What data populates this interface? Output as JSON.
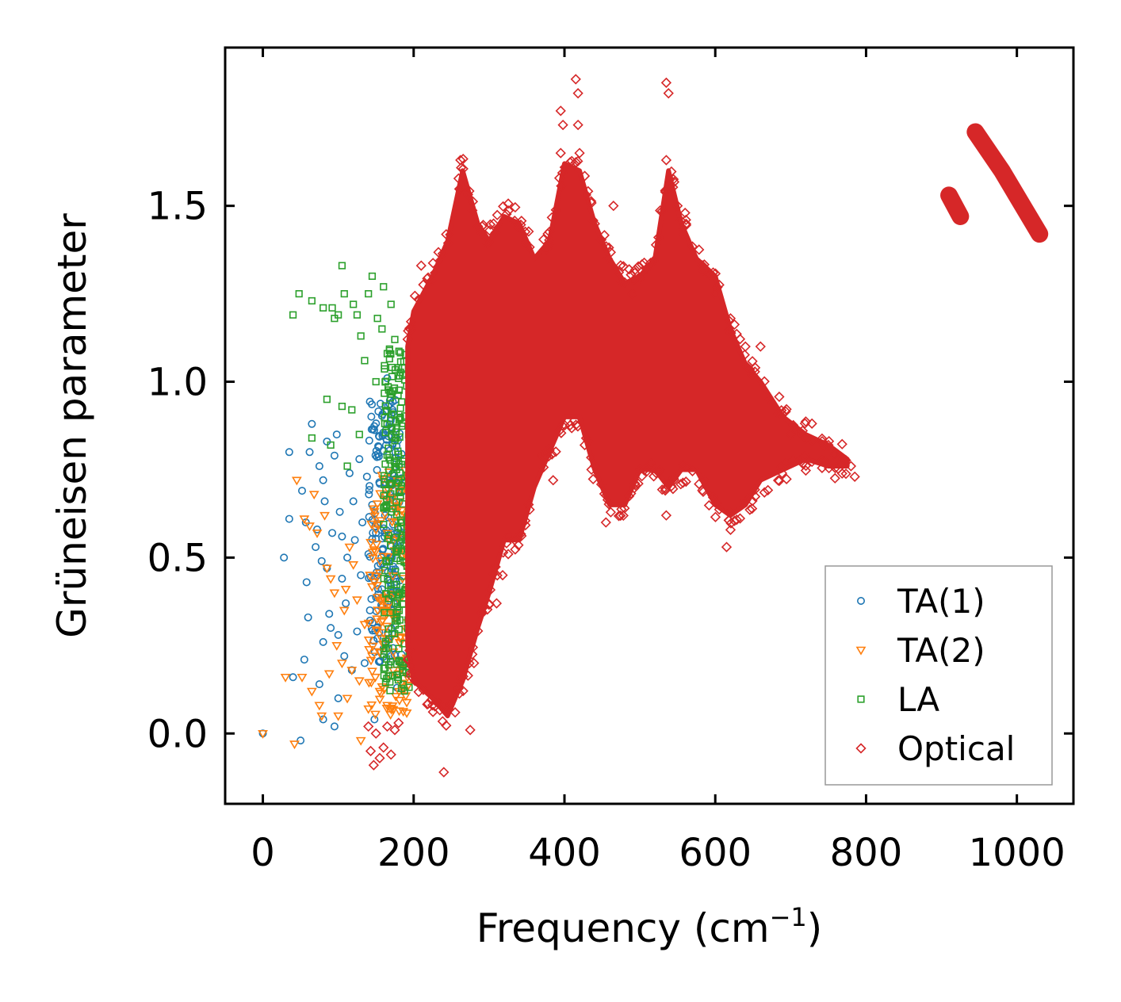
{
  "chart_data": {
    "type": "scatter",
    "title": "",
    "xlabel": "Frequency (cm",
    "xlabel_superscript": "−1",
    "xlabel_suffix": ")",
    "ylabel": "Grüneisen parameter",
    "xlim": [
      -50,
      1075
    ],
    "ylim": [
      -0.2,
      1.95
    ],
    "x_ticks": [
      0,
      200,
      400,
      600,
      800,
      1000
    ],
    "x_tick_labels": [
      "0",
      "200",
      "400",
      "600",
      "800",
      "1000"
    ],
    "y_ticks": [
      0.0,
      0.5,
      1.0,
      1.5
    ],
    "y_tick_labels": [
      "0.0",
      "0.5",
      "1.0",
      "1.5"
    ],
    "grid": false,
    "legend_position": "bottom-right",
    "series": [
      {
        "name": "TA(1)",
        "marker": "circle",
        "color": "#1f77b4",
        "points": [
          [
            0,
            0.0
          ],
          [
            28,
            0.5
          ],
          [
            35,
            0.8
          ],
          [
            35,
            0.61
          ],
          [
            40,
            0.16
          ],
          [
            50,
            -0.02
          ],
          [
            52,
            0.69
          ],
          [
            55,
            0.21
          ],
          [
            57,
            0.6
          ],
          [
            58,
            0.43
          ],
          [
            60,
            0.33
          ],
          [
            62,
            0.8
          ],
          [
            65,
            0.88
          ],
          [
            70,
            0.53
          ],
          [
            72,
            0.58
          ],
          [
            75,
            0.14
          ],
          [
            75,
            0.76
          ],
          [
            78,
            0.49
          ],
          [
            80,
            0.72
          ],
          [
            80,
            0.26
          ],
          [
            80,
            0.04
          ],
          [
            82,
            0.66
          ],
          [
            85,
            0.47
          ],
          [
            85,
            0.83
          ],
          [
            88,
            0.34
          ],
          [
            90,
            0.3
          ],
          [
            92,
            0.57
          ],
          [
            95,
            0.79
          ],
          [
            95,
            0.02
          ],
          [
            98,
            0.85
          ],
          [
            100,
            0.28
          ],
          [
            100,
            0.1
          ],
          [
            102,
            0.63
          ],
          [
            105,
            0.56
          ],
          [
            105,
            0.44
          ],
          [
            108,
            0.22
          ],
          [
            110,
            0.37
          ],
          [
            112,
            0.5
          ],
          [
            115,
            0.74
          ],
          [
            118,
            0.18
          ],
          [
            120,
            0.66
          ],
          [
            122,
            0.55
          ],
          [
            125,
            0.29
          ],
          [
            128,
            0.78
          ],
          [
            130,
            0.45
          ],
          [
            132,
            0.6
          ],
          [
            135,
            0.2
          ],
          [
            138,
            0.73
          ],
          [
            140,
            0.51
          ],
          [
            142,
            0.35
          ],
          [
            145,
            0.65
          ],
          [
            148,
            0.04
          ],
          [
            150,
            0.57
          ],
          [
            152,
            0.27
          ],
          [
            155,
            0.71
          ],
          [
            158,
            0.41
          ],
          [
            160,
            0.85
          ],
          [
            162,
            0.62
          ],
          [
            165,
            1.01
          ],
          [
            168,
            0.5
          ],
          [
            170,
            0.22
          ],
          [
            172,
            0.92
          ],
          [
            175,
            0.69
          ],
          [
            178,
            0.13
          ],
          [
            180,
            0.58
          ]
        ],
        "cloud": {
          "x": [
            140,
            185
          ],
          "y": [
            0.2,
            0.95
          ],
          "count": 180
        }
      },
      {
        "name": "TA(2)",
        "marker": "triangle-down",
        "color": "#ff7f0e",
        "points": [
          [
            0,
            0.0
          ],
          [
            30,
            0.16
          ],
          [
            42,
            -0.03
          ],
          [
            45,
            0.72
          ],
          [
            52,
            0.16
          ],
          [
            55,
            0.61
          ],
          [
            62,
            0.59
          ],
          [
            65,
            0.12
          ],
          [
            68,
            0.68
          ],
          [
            72,
            0.57
          ],
          [
            75,
            0.08
          ],
          [
            78,
            0.05
          ],
          [
            82,
            0.62
          ],
          [
            85,
            0.47
          ],
          [
            88,
            0.17
          ],
          [
            90,
            0.44
          ],
          [
            95,
            0.4
          ],
          [
            98,
            0.25
          ],
          [
            100,
            0.05
          ],
          [
            105,
            0.2
          ],
          [
            108,
            0.35
          ],
          [
            110,
            0.41
          ],
          [
            112,
            0.1
          ],
          [
            115,
            0.53
          ],
          [
            118,
            0.18
          ],
          [
            120,
            0.48
          ],
          [
            125,
            0.38
          ],
          [
            128,
            0.15
          ],
          [
            130,
            -0.02
          ],
          [
            135,
            0.31
          ],
          [
            140,
            0.07
          ],
          [
            142,
            0.45
          ],
          [
            145,
            0.22
          ],
          [
            150,
            0.58
          ],
          [
            155,
            0.12
          ],
          [
            160,
            0.35
          ],
          [
            165,
            0.08
          ],
          [
            170,
            0.27
          ],
          [
            175,
            0.52
          ],
          [
            180,
            0.17
          ],
          [
            185,
            0.69
          ]
        ],
        "cloud": {
          "x": [
            140,
            195
          ],
          "y": [
            0.05,
            0.75
          ],
          "count": 150
        }
      },
      {
        "name": "LA",
        "marker": "square",
        "color": "#2ca02c",
        "points": [
          [
            40,
            1.19
          ],
          [
            48,
            1.25
          ],
          [
            65,
            0.84
          ],
          [
            65,
            1.23
          ],
          [
            80,
            1.21
          ],
          [
            85,
            0.95
          ],
          [
            90,
            0.82
          ],
          [
            92,
            1.21
          ],
          [
            95,
            1.18
          ],
          [
            100,
            1.19
          ],
          [
            105,
            0.93
          ],
          [
            105,
            1.33
          ],
          [
            108,
            1.25
          ],
          [
            112,
            0.76
          ],
          [
            118,
            0.92
          ],
          [
            120,
            1.22
          ],
          [
            125,
            1.19
          ],
          [
            128,
            0.85
          ],
          [
            130,
            1.13
          ],
          [
            135,
            1.06
          ],
          [
            140,
            1.25
          ],
          [
            145,
            1.3
          ],
          [
            150,
            1.0
          ],
          [
            152,
            1.18
          ],
          [
            158,
            1.15
          ],
          [
            160,
            1.27
          ],
          [
            165,
            1.08
          ],
          [
            170,
            1.22
          ],
          [
            175,
            1.12
          ],
          [
            180,
            1.04
          ]
        ],
        "cloud": {
          "x": [
            160,
            198
          ],
          "y": [
            0.12,
            1.12
          ],
          "count": 260
        }
      },
      {
        "name": "Optical",
        "marker": "diamond",
        "color": "#d62728",
        "points": [
          [
            140,
            0.02
          ],
          [
            143,
            -0.05
          ],
          [
            147,
            -0.09
          ],
          [
            150,
            0.0
          ],
          [
            155,
            -0.07
          ],
          [
            160,
            -0.04
          ],
          [
            165,
            0.02
          ],
          [
            170,
            -0.06
          ],
          [
            175,
            0.01
          ],
          [
            180,
            0.03
          ],
          [
            210,
            1.33
          ],
          [
            225,
            0.08
          ],
          [
            230,
            0.09
          ],
          [
            240,
            -0.11
          ],
          [
            255,
            0.06
          ],
          [
            262,
            1.63
          ],
          [
            275,
            0.01
          ],
          [
            280,
            0.2
          ],
          [
            310,
            0.37
          ],
          [
            318,
            0.45
          ],
          [
            370,
            0.79
          ],
          [
            385,
            0.72
          ],
          [
            395,
            1.65
          ],
          [
            395,
            1.77
          ],
          [
            398,
            1.73
          ],
          [
            415,
            1.86
          ],
          [
            418,
            1.82
          ],
          [
            418,
            1.73
          ],
          [
            420,
            1.65
          ],
          [
            455,
            0.6
          ],
          [
            465,
            1.5
          ],
          [
            490,
            1.25
          ],
          [
            535,
            1.85
          ],
          [
            538,
            1.82
          ],
          [
            535,
            0.62
          ],
          [
            535,
            1.63
          ],
          [
            550,
            1.5
          ],
          [
            560,
            1.48
          ],
          [
            600,
            1.25
          ],
          [
            615,
            0.53
          ],
          [
            640,
            1.1
          ],
          [
            660,
            1.1
          ],
          [
            700,
            0.85
          ],
          [
            730,
            0.83
          ],
          [
            750,
            0.82
          ],
          [
            770,
            0.78
          ],
          [
            780,
            0.76
          ],
          [
            785,
            0.73
          ]
        ],
        "envelope": [
          [
            192,
            0.25,
            1.1
          ],
          [
            200,
            0.15,
            1.2
          ],
          [
            225,
            0.1,
            1.3
          ],
          [
            245,
            0.05,
            1.4
          ],
          [
            265,
            0.15,
            1.6
          ],
          [
            285,
            0.3,
            1.45
          ],
          [
            300,
            0.4,
            1.4
          ],
          [
            320,
            0.55,
            1.47
          ],
          [
            340,
            0.55,
            1.45
          ],
          [
            360,
            0.7,
            1.35
          ],
          [
            380,
            0.8,
            1.4
          ],
          [
            400,
            0.9,
            1.62
          ],
          [
            420,
            0.9,
            1.6
          ],
          [
            440,
            0.75,
            1.45
          ],
          [
            460,
            0.65,
            1.35
          ],
          [
            480,
            0.65,
            1.28
          ],
          [
            500,
            0.75,
            1.3
          ],
          [
            520,
            0.75,
            1.35
          ],
          [
            538,
            0.7,
            1.6
          ],
          [
            555,
            0.75,
            1.45
          ],
          [
            575,
            0.75,
            1.35
          ],
          [
            600,
            0.65,
            1.3
          ],
          [
            620,
            0.62,
            1.15
          ],
          [
            640,
            0.65,
            1.05
          ],
          [
            660,
            0.72,
            1.0
          ],
          [
            690,
            0.75,
            0.9
          ],
          [
            720,
            0.78,
            0.85
          ],
          [
            750,
            0.76,
            0.82
          ],
          [
            775,
            0.76,
            0.78
          ]
        ],
        "streaks": [
          [
            [
              910,
              1.53
            ],
            [
              925,
              1.47
            ]
          ],
          [
            [
              945,
              1.71
            ],
            [
              980,
              1.6
            ],
            [
              1030,
              1.42
            ]
          ]
        ]
      }
    ]
  }
}
